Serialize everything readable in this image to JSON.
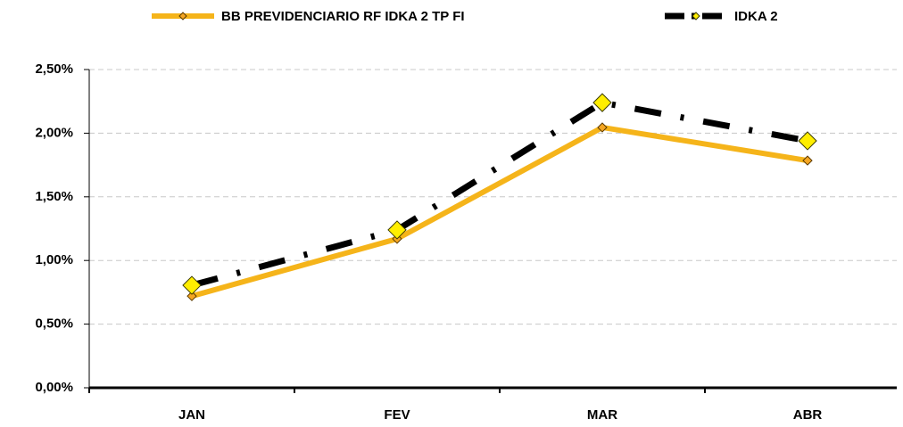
{
  "chart_data": {
    "type": "line",
    "categories": [
      "JAN",
      "FEV",
      "MAR",
      "ABR"
    ],
    "series": [
      {
        "name": "BB PREVIDENCIARIO RF IDKA 2 TP FI",
        "color": "#f5b41a",
        "values": [
          0.72,
          1.17,
          2.045,
          1.785
        ]
      },
      {
        "name": "IDKA 2",
        "color": "#000000",
        "values": [
          0.805,
          1.24,
          2.24,
          1.94
        ]
      }
    ],
    "ylim": [
      0,
      2.5
    ],
    "yticks": [
      {
        "value": 0,
        "label": "0,00%"
      },
      {
        "value": 0.5,
        "label": "0,50%"
      },
      {
        "value": 1,
        "label": "1,00%"
      },
      {
        "value": 1.5,
        "label": "1,50%"
      },
      {
        "value": 2,
        "label": "2,00%"
      },
      {
        "value": 2.5,
        "label": "2,50%"
      }
    ],
    "grid": true
  }
}
